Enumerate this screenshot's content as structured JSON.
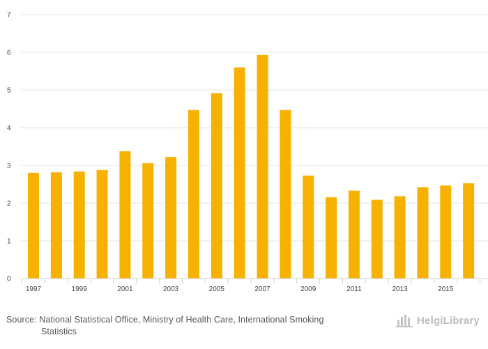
{
  "chart_data": {
    "type": "bar",
    "title": "",
    "xlabel": "",
    "ylabel": "",
    "ylim": [
      0,
      7
    ],
    "yticks": [
      0,
      1,
      2,
      3,
      4,
      5,
      6,
      7
    ],
    "grid": true,
    "legend": "none",
    "bar_color": "#f7b100",
    "categories": [
      "1997",
      "1998",
      "1999",
      "2000",
      "2001",
      "2002",
      "2003",
      "2004",
      "2005",
      "2006",
      "2007",
      "2008",
      "2009",
      "2010",
      "2011",
      "2012",
      "2013",
      "2014",
      "2015",
      "2016"
    ],
    "xtick_labels": [
      "1997",
      "",
      "1999",
      "",
      "2001",
      "",
      "2003",
      "",
      "2005",
      "",
      "2007",
      "",
      "2009",
      "",
      "2011",
      "",
      "2013",
      "",
      "2015",
      ""
    ],
    "values": [
      2.8,
      2.82,
      2.84,
      2.88,
      3.38,
      3.06,
      3.22,
      4.47,
      4.92,
      5.6,
      5.93,
      4.47,
      2.73,
      2.16,
      2.33,
      2.09,
      2.18,
      2.42,
      2.47,
      2.53
    ]
  },
  "footer": {
    "source_line1": "Source: National Statistical Office, Ministry of Health Care, International Smoking",
    "source_line2": "Statistics",
    "logo_text": "HelgiLibrary"
  }
}
